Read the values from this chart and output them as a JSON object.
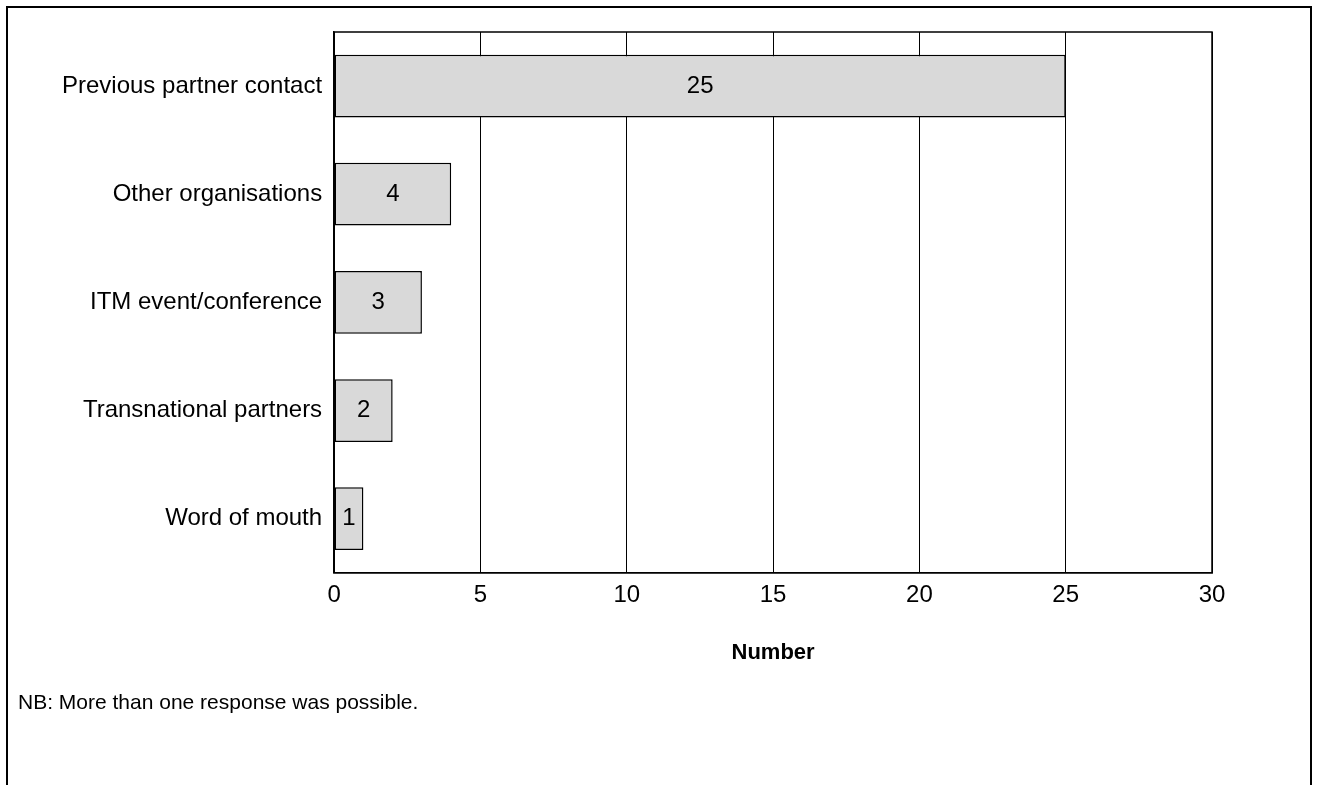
{
  "chart_data": {
    "type": "bar",
    "orientation": "horizontal",
    "xlabel": "Number",
    "categories": [
      "Previous partner contact",
      "Other organisations",
      "ITM event/conference",
      "Transnational partners",
      "Word of mouth"
    ],
    "values": [
      25,
      4,
      3,
      2,
      1
    ],
    "color": "#d9d9d9",
    "xlim": [
      0,
      30
    ],
    "xticks": [
      0,
      5,
      10,
      15,
      20,
      25,
      30
    ],
    "grid": "x",
    "data_labels": true,
    "annotations": [
      "NB: More than one response was possible."
    ]
  }
}
